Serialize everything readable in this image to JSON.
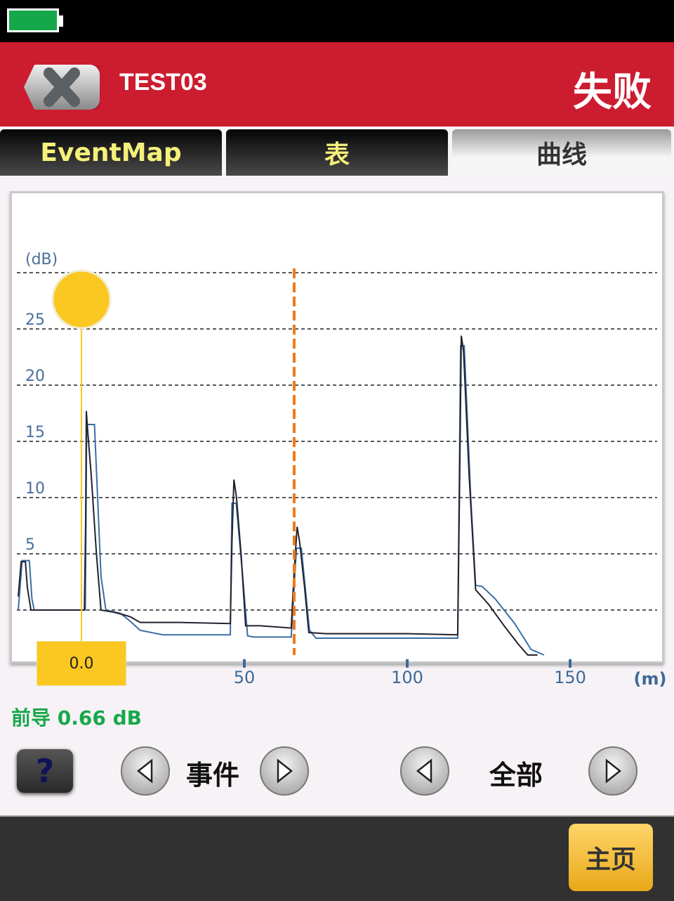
{
  "status_bar": {
    "battery_icon": "battery-full-icon",
    "battery_color": "#14a84a"
  },
  "header": {
    "close_icon": "close-icon",
    "title": "TEST03",
    "result": "失败",
    "color": "#cc1c30"
  },
  "tabs": [
    {
      "label": "EventMap",
      "active": false
    },
    {
      "label": "表",
      "active": false
    },
    {
      "label": "曲线",
      "active": true
    }
  ],
  "chart_data": {
    "type": "line",
    "ylabel": "(dB)",
    "xlabel": "(m)",
    "y_ticks": [
      "5",
      "10",
      "15",
      "20",
      "25"
    ],
    "x_ticks": [
      "50",
      "100",
      "150"
    ],
    "ylim": [
      -4,
      30
    ],
    "xlim": [
      -20,
      178
    ],
    "grid": true,
    "cursor": {
      "x": 0,
      "label": "0.0",
      "color": "#fbc821"
    },
    "marker": {
      "x": 65.3,
      "color": "#f07a1a"
    },
    "series": [
      {
        "color": "#22222e",
        "x": [
          -19.4,
          -18.5,
          -17.2,
          -16.6,
          -15.5,
          0.9,
          1.3,
          1.5,
          1.9,
          3.0,
          4.6,
          6.0,
          10,
          12.7,
          15,
          18,
          30,
          45.7,
          46.2,
          46.8,
          47.6,
          49,
          50.4,
          55,
          64.4,
          65.2,
          66.2,
          67,
          68.5,
          69.8,
          75,
          100,
          115.5,
          116.2,
          116.6,
          117.3,
          119,
          121,
          125,
          130,
          134,
          137,
          140
        ],
        "y": [
          1.2,
          4.3,
          4.3,
          2,
          0,
          0,
          8,
          17.7,
          16,
          12,
          5,
          0,
          -0.2,
          -0.4,
          -0.6,
          -1.1,
          -1.1,
          -1.2,
          6,
          11.6,
          10,
          5,
          -1.4,
          -1.4,
          -1.6,
          3,
          7.4,
          6,
          2,
          -2,
          -2.1,
          -2.1,
          -2.2,
          14,
          24.4,
          23,
          12,
          1.8,
          0.5,
          -1.5,
          -3,
          -4,
          -4
        ]
      },
      {
        "color": "#3a6ea5",
        "x": [
          -19.4,
          -18.2,
          -16,
          -15.2,
          -14.5,
          1.2,
          1.6,
          4.0,
          6.0,
          7.5,
          12,
          15,
          18,
          25,
          45.7,
          46.2,
          47.5,
          49.5,
          51,
          53,
          64.4,
          66,
          67.5,
          70,
          72,
          80,
          115.5,
          116.4,
          117.5,
          119.5,
          121,
          123,
          127,
          133,
          138,
          142
        ],
        "y": [
          0,
          4.4,
          4.4,
          1,
          0,
          0,
          16.5,
          16.5,
          3,
          0,
          -0.3,
          -1,
          -1.8,
          -2.2,
          -2.2,
          9.5,
          9.5,
          3,
          -2.3,
          -2.4,
          -2.4,
          5.5,
          5.5,
          -1.8,
          -2.5,
          -2.5,
          -2.5,
          23.5,
          23.5,
          10,
          2.2,
          2.1,
          1,
          -1.2,
          -3.5,
          -4
        ]
      }
    ]
  },
  "lead": {
    "text": "前导 0.66 dB",
    "color": "#17a84a"
  },
  "controls": {
    "help_label": "?",
    "event_label": "事件",
    "all_label": "全部",
    "prev_icon": "triangle-left-icon",
    "next_icon": "triangle-right-icon"
  },
  "footer": {
    "home_label": "主页"
  }
}
